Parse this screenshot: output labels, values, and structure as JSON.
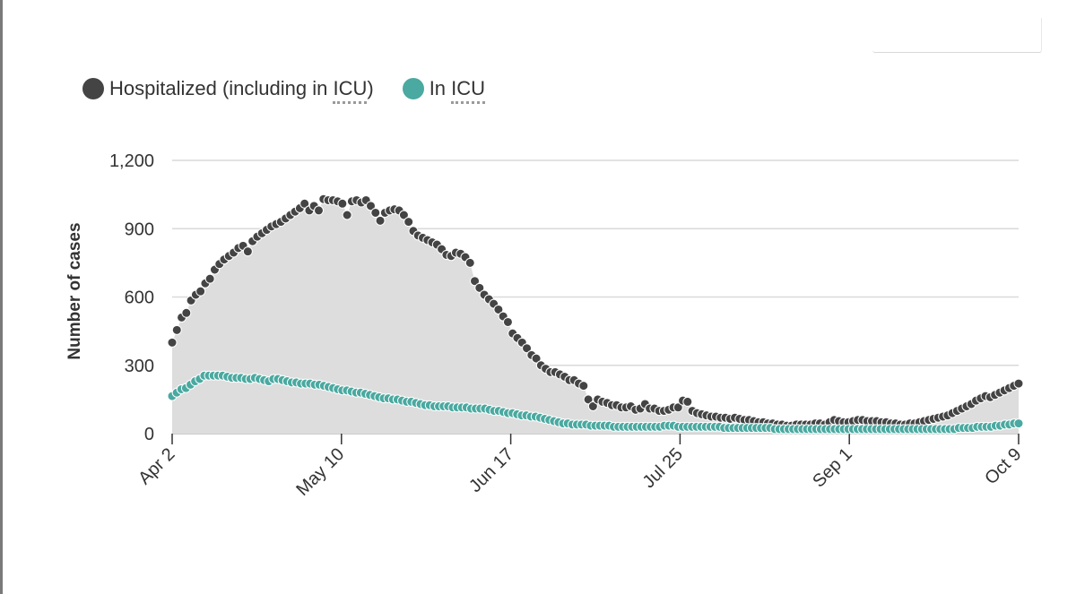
{
  "legend": {
    "hosp_prefix": "Hospitalized (including in ",
    "hosp_abbr": "ICU",
    "hosp_suffix": ")",
    "icu_prefix": "In ",
    "icu_abbr": "ICU"
  },
  "colors": {
    "hospitalized": "#444444",
    "icu": "#4aa9a0",
    "area": "#dddddd",
    "grid": "#d9d9d9"
  },
  "chart_data": {
    "type": "scatter",
    "ylabel": "Number of cases",
    "ylim": [
      0,
      1200
    ],
    "yticks": [
      0,
      300,
      600,
      900,
      1200
    ],
    "ytick_labels": [
      "0",
      "300",
      "600",
      "900",
      "1,200"
    ],
    "x_tick_labels": [
      "Apr 2",
      "May 10",
      "Jun 17",
      "Jul 25",
      "Sep 1",
      "Oct 9"
    ],
    "x_start": "Apr 2",
    "x_end": "Oct 9",
    "grid": true,
    "legend_position": "top-left",
    "series": [
      {
        "name": "Hospitalized (including in ICU)",
        "color": "#444444",
        "filled_area": true,
        "values": [
          400,
          455,
          510,
          530,
          585,
          610,
          625,
          660,
          680,
          720,
          745,
          765,
          780,
          795,
          815,
          825,
          800,
          845,
          865,
          880,
          895,
          910,
          920,
          930,
          945,
          960,
          975,
          990,
          1010,
          980,
          1000,
          980,
          1030,
          1025,
          1025,
          1020,
          1010,
          960,
          1020,
          1025,
          1015,
          1025,
          1000,
          970,
          935,
          970,
          980,
          985,
          980,
          960,
          930,
          890,
          870,
          860,
          850,
          840,
          830,
          810,
          785,
          780,
          795,
          790,
          775,
          750,
          670,
          640,
          610,
          590,
          570,
          545,
          515,
          490,
          440,
          420,
          400,
          375,
          345,
          330,
          300,
          285,
          270,
          270,
          260,
          250,
          235,
          235,
          220,
          210,
          150,
          120,
          150,
          140,
          135,
          125,
          125,
          115,
          115,
          120,
          105,
          110,
          130,
          110,
          110,
          100,
          100,
          105,
          115,
          115,
          145,
          140,
          100,
          90,
          85,
          80,
          75,
          75,
          70,
          70,
          65,
          70,
          65,
          60,
          60,
          55,
          50,
          50,
          45,
          45,
          40,
          40,
          35,
          35,
          40,
          40,
          40,
          40,
          45,
          45,
          40,
          50,
          60,
          55,
          50,
          50,
          55,
          60,
          60,
          55,
          55,
          55,
          50,
          50,
          45,
          45,
          40,
          40,
          45,
          45,
          50,
          55,
          60,
          65,
          70,
          75,
          80,
          90,
          100,
          110,
          120,
          130,
          145,
          155,
          165,
          160,
          170,
          180,
          190,
          200,
          210,
          220
        ]
      },
      {
        "name": "In ICU",
        "color": "#4aa9a0",
        "values": [
          165,
          180,
          195,
          200,
          215,
          230,
          240,
          255,
          255,
          255,
          255,
          255,
          250,
          245,
          245,
          245,
          240,
          240,
          245,
          240,
          235,
          230,
          240,
          240,
          235,
          230,
          225,
          225,
          220,
          220,
          220,
          215,
          215,
          210,
          205,
          200,
          195,
          190,
          190,
          185,
          180,
          180,
          175,
          170,
          165,
          160,
          155,
          155,
          150,
          150,
          145,
          140,
          140,
          135,
          130,
          125,
          125,
          120,
          120,
          120,
          120,
          115,
          115,
          115,
          115,
          110,
          110,
          110,
          110,
          105,
          100,
          100,
          95,
          90,
          90,
          85,
          80,
          80,
          75,
          75,
          70,
          65,
          60,
          55,
          50,
          45,
          45,
          40,
          40,
          40,
          40,
          35,
          35,
          35,
          35,
          35,
          30,
          30,
          30,
          30,
          30,
          30,
          30,
          30,
          30,
          30,
          30,
          35,
          35,
          35,
          30,
          30,
          30,
          30,
          30,
          30,
          30,
          30,
          30,
          30,
          25,
          25,
          25,
          25,
          25,
          25,
          25,
          25,
          25,
          25,
          25,
          20,
          20,
          20,
          20,
          20,
          20,
          20,
          20,
          20,
          20,
          20,
          20,
          20,
          20,
          20,
          20,
          20,
          20,
          20,
          20,
          20,
          20,
          20,
          20,
          20,
          20,
          20,
          20,
          20,
          20,
          20,
          20,
          20,
          20,
          20,
          20,
          20,
          20,
          20,
          20,
          25,
          25,
          25,
          25,
          30,
          30,
          30,
          30,
          35,
          35,
          40,
          40,
          45,
          45
        ]
      }
    ]
  }
}
